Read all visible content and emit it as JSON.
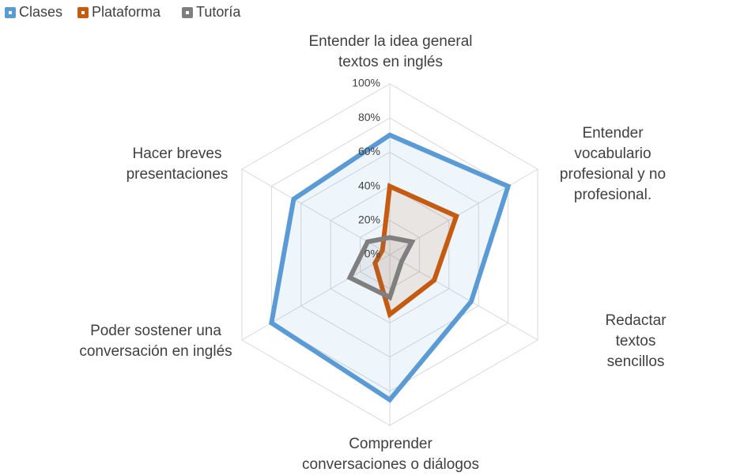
{
  "chart_data": {
    "type": "radar",
    "categories": [
      "Entender la idea general\ntextos en inglés",
      "Entender vocabulario\nprofesional y no\nprofesional.",
      "Redactar textos sencillos",
      "Comprender\nconversaciones o diálogos",
      "Poder sostener una\nconversación en inglés",
      "Hacer breves\npresentaciones"
    ],
    "series": [
      {
        "name": "Clases",
        "color": "#5b9bd5",
        "values": [
          70,
          80,
          55,
          85,
          80,
          65
        ]
      },
      {
        "name": "Plataforma",
        "color": "#c55a11",
        "values": [
          40,
          45,
          30,
          35,
          10,
          5
        ]
      },
      {
        "name": "Tutoría",
        "color": "#7f7f7f",
        "values": [
          10,
          15,
          8,
          25,
          27,
          15
        ]
      }
    ],
    "rlim": [
      0,
      100
    ],
    "rticks": [
      {
        "value": 0,
        "label": "0%"
      },
      {
        "value": 20,
        "label": "20%"
      },
      {
        "value": 40,
        "label": "40%"
      },
      {
        "value": 60,
        "label": "60%"
      },
      {
        "value": 80,
        "label": "80%"
      },
      {
        "value": 100,
        "label": "100%"
      }
    ],
    "grid": true,
    "legend": "top-left"
  }
}
